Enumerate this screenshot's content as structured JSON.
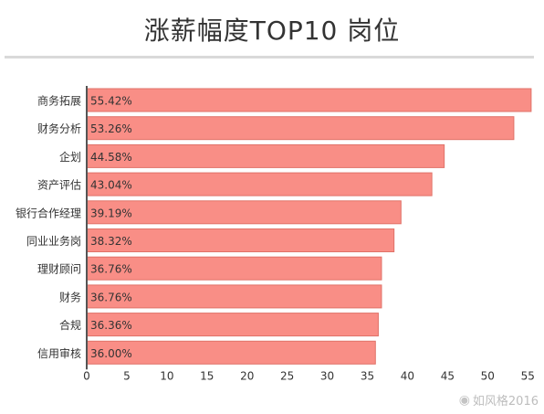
{
  "chart_data": {
    "type": "bar",
    "orientation": "horizontal",
    "title": "涨薪幅度TOP10 岗位",
    "categories": [
      "商务拓展",
      "财务分析",
      "企划",
      "资产评估",
      "银行合作经理",
      "同业业务岗",
      "理财顾问",
      "财务",
      "合规",
      "信用审核"
    ],
    "values": [
      55.42,
      53.26,
      44.58,
      43.04,
      39.19,
      38.32,
      36.76,
      36.76,
      36.36,
      36.0
    ],
    "value_labels": [
      "55.42%",
      "53.26%",
      "44.58%",
      "43.04%",
      "39.19%",
      "38.32%",
      "36.76%",
      "36.76%",
      "36.36%",
      "36.00%"
    ],
    "xticks": [
      0,
      5,
      10,
      15,
      20,
      25,
      30,
      35,
      40,
      45,
      50,
      55
    ],
    "xlim": [
      0,
      56
    ],
    "grid": false,
    "colors": {
      "bar": "#f98e86",
      "bar_edge": "#e07268",
      "axis": "#555555",
      "text": "#333333"
    }
  },
  "watermark": {
    "text": "如风格2016",
    "icon": "weibo-icon"
  }
}
